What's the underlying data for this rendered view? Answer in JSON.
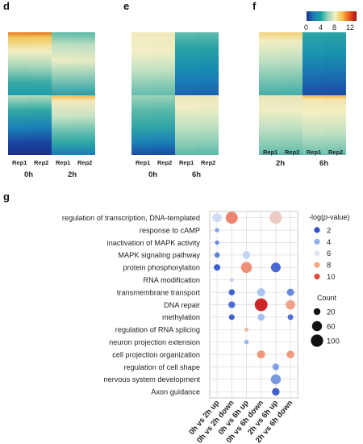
{
  "panels": {
    "d": {
      "letter": "d",
      "reps": [
        "Rep1",
        "Rep2",
        "Rep1",
        "Rep2"
      ],
      "times": [
        "0h",
        "2h"
      ]
    },
    "e": {
      "letter": "e",
      "reps": [
        "Rep1",
        "Rep2",
        "Rep1",
        "Rep2"
      ],
      "times": [
        "0h",
        "6h"
      ]
    },
    "f": {
      "letter": "f",
      "reps": [
        "Rep1",
        "Rep2",
        "Rep1",
        "Rep2"
      ],
      "times": [
        "2h",
        "6h"
      ]
    },
    "g": {
      "letter": "g"
    }
  },
  "colorbar": {
    "ticks": [
      "0",
      "4",
      "8",
      "12"
    ],
    "range": [
      0,
      14
    ],
    "colors": [
      "#1a2f8f",
      "#1f7fb6",
      "#18a3a3",
      "#9ed3b8",
      "#f2f0c0",
      "#f6c04e",
      "#e8571c",
      "#a50f15"
    ]
  },
  "chart_data": {
    "type": "scatter",
    "subtype": "dot-plot",
    "terms": [
      "regulation of transcription, DNA-templated",
      "response to cAMP",
      "inactivation of MAPK activity",
      "MAPK signaling pathway",
      "protein phosphorylation",
      "RNA modification",
      "transmembrane transport",
      "DNA repair",
      "methylation",
      "regulation of RNA splicing",
      "neuron projection extension",
      "cell projection organization",
      "regulation of cell shape",
      "nervous system development",
      "Axon guidance"
    ],
    "comparisons": [
      "0h vs 2h up",
      "0h vs 2h down",
      "0h vs 6h up",
      "0h vs 6h down",
      "2h vs 6h up",
      "2h vs 6h down"
    ],
    "points": [
      {
        "term": 0,
        "comp": 0,
        "count": 45,
        "logp": 5.5
      },
      {
        "term": 0,
        "comp": 1,
        "count": 95,
        "logp": 9.0
      },
      {
        "term": 0,
        "comp": 4,
        "count": 100,
        "logp": 7.0
      },
      {
        "term": 1,
        "comp": 0,
        "count": 4,
        "logp": 3.5
      },
      {
        "term": 2,
        "comp": 0,
        "count": 4,
        "logp": 3.0
      },
      {
        "term": 3,
        "comp": 0,
        "count": 10,
        "logp": 2.8
      },
      {
        "term": 3,
        "comp": 2,
        "count": 30,
        "logp": 5.2
      },
      {
        "term": 4,
        "comp": 0,
        "count": 18,
        "logp": 2.0
      },
      {
        "term": 4,
        "comp": 2,
        "count": 75,
        "logp": 8.7
      },
      {
        "term": 4,
        "comp": 4,
        "count": 55,
        "logp": 2.2
      },
      {
        "term": 5,
        "comp": 1,
        "count": 3,
        "logp": 5.0
      },
      {
        "term": 6,
        "comp": 1,
        "count": 15,
        "logp": 2.1
      },
      {
        "term": 6,
        "comp": 3,
        "count": 35,
        "logp": 4.5
      },
      {
        "term": 6,
        "comp": 5,
        "count": 25,
        "logp": 3.0
      },
      {
        "term": 7,
        "comp": 1,
        "count": 20,
        "logp": 2.3
      },
      {
        "term": 7,
        "comp": 3,
        "count": 110,
        "logp": 11.0
      },
      {
        "term": 7,
        "comp": 5,
        "count": 50,
        "logp": 8.3
      },
      {
        "term": 8,
        "comp": 1,
        "count": 12,
        "logp": 2.0
      },
      {
        "term": 8,
        "comp": 3,
        "count": 22,
        "logp": 4.3
      },
      {
        "term": 8,
        "comp": 5,
        "count": 12,
        "logp": 2.4
      },
      {
        "term": 9,
        "comp": 2,
        "count": 4,
        "logp": 7.5
      },
      {
        "term": 10,
        "comp": 2,
        "count": 5,
        "logp": 4.0
      },
      {
        "term": 11,
        "comp": 3,
        "count": 35,
        "logp": 8.5
      },
      {
        "term": 11,
        "comp": 5,
        "count": 30,
        "logp": 8.5
      },
      {
        "term": 12,
        "comp": 4,
        "count": 20,
        "logp": 3.5
      },
      {
        "term": 13,
        "comp": 4,
        "count": 60,
        "logp": 3.3
      },
      {
        "term": 14,
        "comp": 4,
        "count": 28,
        "logp": 2.0
      }
    ],
    "legend_color": {
      "title_prefix": "-log(",
      "title_italic": "p",
      "title_suffix": "-value)",
      "levels": [
        2,
        4,
        6,
        8,
        10
      ],
      "colors": [
        "#2b4fc9",
        "#8fb0ea",
        "#dfe6f4",
        "#f3a585",
        "#e3493a"
      ]
    },
    "legend_size": {
      "title": "Count",
      "levels": [
        20,
        60,
        100
      ]
    },
    "color_scale": {
      "stops": [
        2,
        4,
        6,
        8,
        10,
        11
      ],
      "colors": [
        "#2b4fc9",
        "#8fb0ea",
        "#dfe6f4",
        "#f3a585",
        "#e3493a",
        "#c81010"
      ]
    }
  }
}
